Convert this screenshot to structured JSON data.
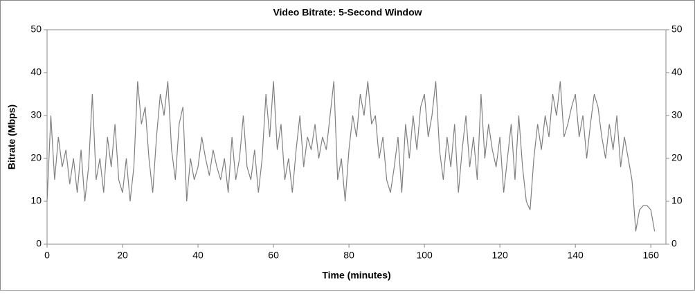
{
  "chart_data": {
    "type": "line",
    "title": "Video Bitrate: 5-Second Window",
    "x_label": "Time (minutes)",
    "y_label": "Bitrate (Mbps)",
    "x": [
      0,
      1,
      2,
      3,
      4,
      5,
      6,
      7,
      8,
      9,
      10,
      11,
      12,
      13,
      14,
      15,
      16,
      17,
      18,
      19,
      20,
      21,
      22,
      23,
      24,
      25,
      26,
      27,
      28,
      29,
      30,
      31,
      32,
      33,
      34,
      35,
      36,
      37,
      38,
      39,
      40,
      41,
      42,
      43,
      44,
      45,
      46,
      47,
      48,
      49,
      50,
      51,
      52,
      53,
      54,
      55,
      56,
      57,
      58,
      59,
      60,
      61,
      62,
      63,
      64,
      65,
      66,
      67,
      68,
      69,
      70,
      71,
      72,
      73,
      74,
      75,
      76,
      77,
      78,
      79,
      80,
      81,
      82,
      83,
      84,
      85,
      86,
      87,
      88,
      89,
      90,
      91,
      92,
      93,
      94,
      95,
      96,
      97,
      98,
      99,
      100,
      101,
      102,
      103,
      104,
      105,
      106,
      107,
      108,
      109,
      110,
      111,
      112,
      113,
      114,
      115,
      116,
      117,
      118,
      119,
      120,
      121,
      122,
      123,
      124,
      125,
      126,
      127,
      128,
      129,
      130,
      131,
      132,
      133,
      134,
      135,
      136,
      137,
      138,
      139,
      140,
      141,
      142,
      143,
      144,
      145,
      146,
      147,
      148,
      149,
      150,
      151,
      152,
      153,
      154,
      155,
      156,
      157,
      158,
      159,
      160,
      161
    ],
    "series": [
      {
        "name": "Bitrate",
        "color": "#7f7f7f",
        "values": [
          10,
          30,
          15,
          25,
          18,
          22,
          14,
          20,
          12,
          22,
          10,
          18,
          35,
          15,
          20,
          12,
          25,
          18,
          28,
          15,
          12,
          20,
          10,
          18,
          38,
          28,
          32,
          20,
          12,
          25,
          35,
          30,
          38,
          22,
          15,
          28,
          32,
          10,
          20,
          15,
          18,
          25,
          20,
          16,
          22,
          18,
          15,
          20,
          12,
          25,
          15,
          20,
          30,
          18,
          15,
          22,
          12,
          20,
          35,
          25,
          38,
          22,
          28,
          15,
          20,
          12,
          22,
          30,
          18,
          25,
          22,
          28,
          20,
          25,
          22,
          30,
          38,
          15,
          20,
          10,
          22,
          30,
          25,
          35,
          30,
          38,
          28,
          30,
          20,
          25,
          15,
          12,
          18,
          25,
          12,
          28,
          20,
          30,
          22,
          32,
          35,
          25,
          30,
          38,
          22,
          15,
          25,
          18,
          28,
          12,
          22,
          30,
          18,
          25,
          15,
          35,
          20,
          28,
          22,
          18,
          25,
          12,
          20,
          28,
          15,
          30,
          18,
          10,
          8,
          20,
          28,
          22,
          30,
          25,
          35,
          30,
          38,
          25,
          28,
          32,
          35,
          25,
          30,
          20,
          28,
          35,
          32,
          25,
          20,
          28,
          22,
          30,
          18,
          25,
          20,
          15,
          3,
          8,
          9,
          9,
          8,
          3
        ]
      }
    ],
    "xlim": [
      0,
      164
    ],
    "xticks": [
      0,
      20,
      40,
      60,
      80,
      100,
      120,
      140,
      160
    ],
    "ylim": [
      0,
      50
    ],
    "yticks": [
      0,
      10,
      20,
      30,
      40,
      50
    ],
    "y2lim": [
      0,
      50
    ],
    "y2ticks": [
      0,
      10,
      20,
      30,
      40,
      50
    ]
  }
}
